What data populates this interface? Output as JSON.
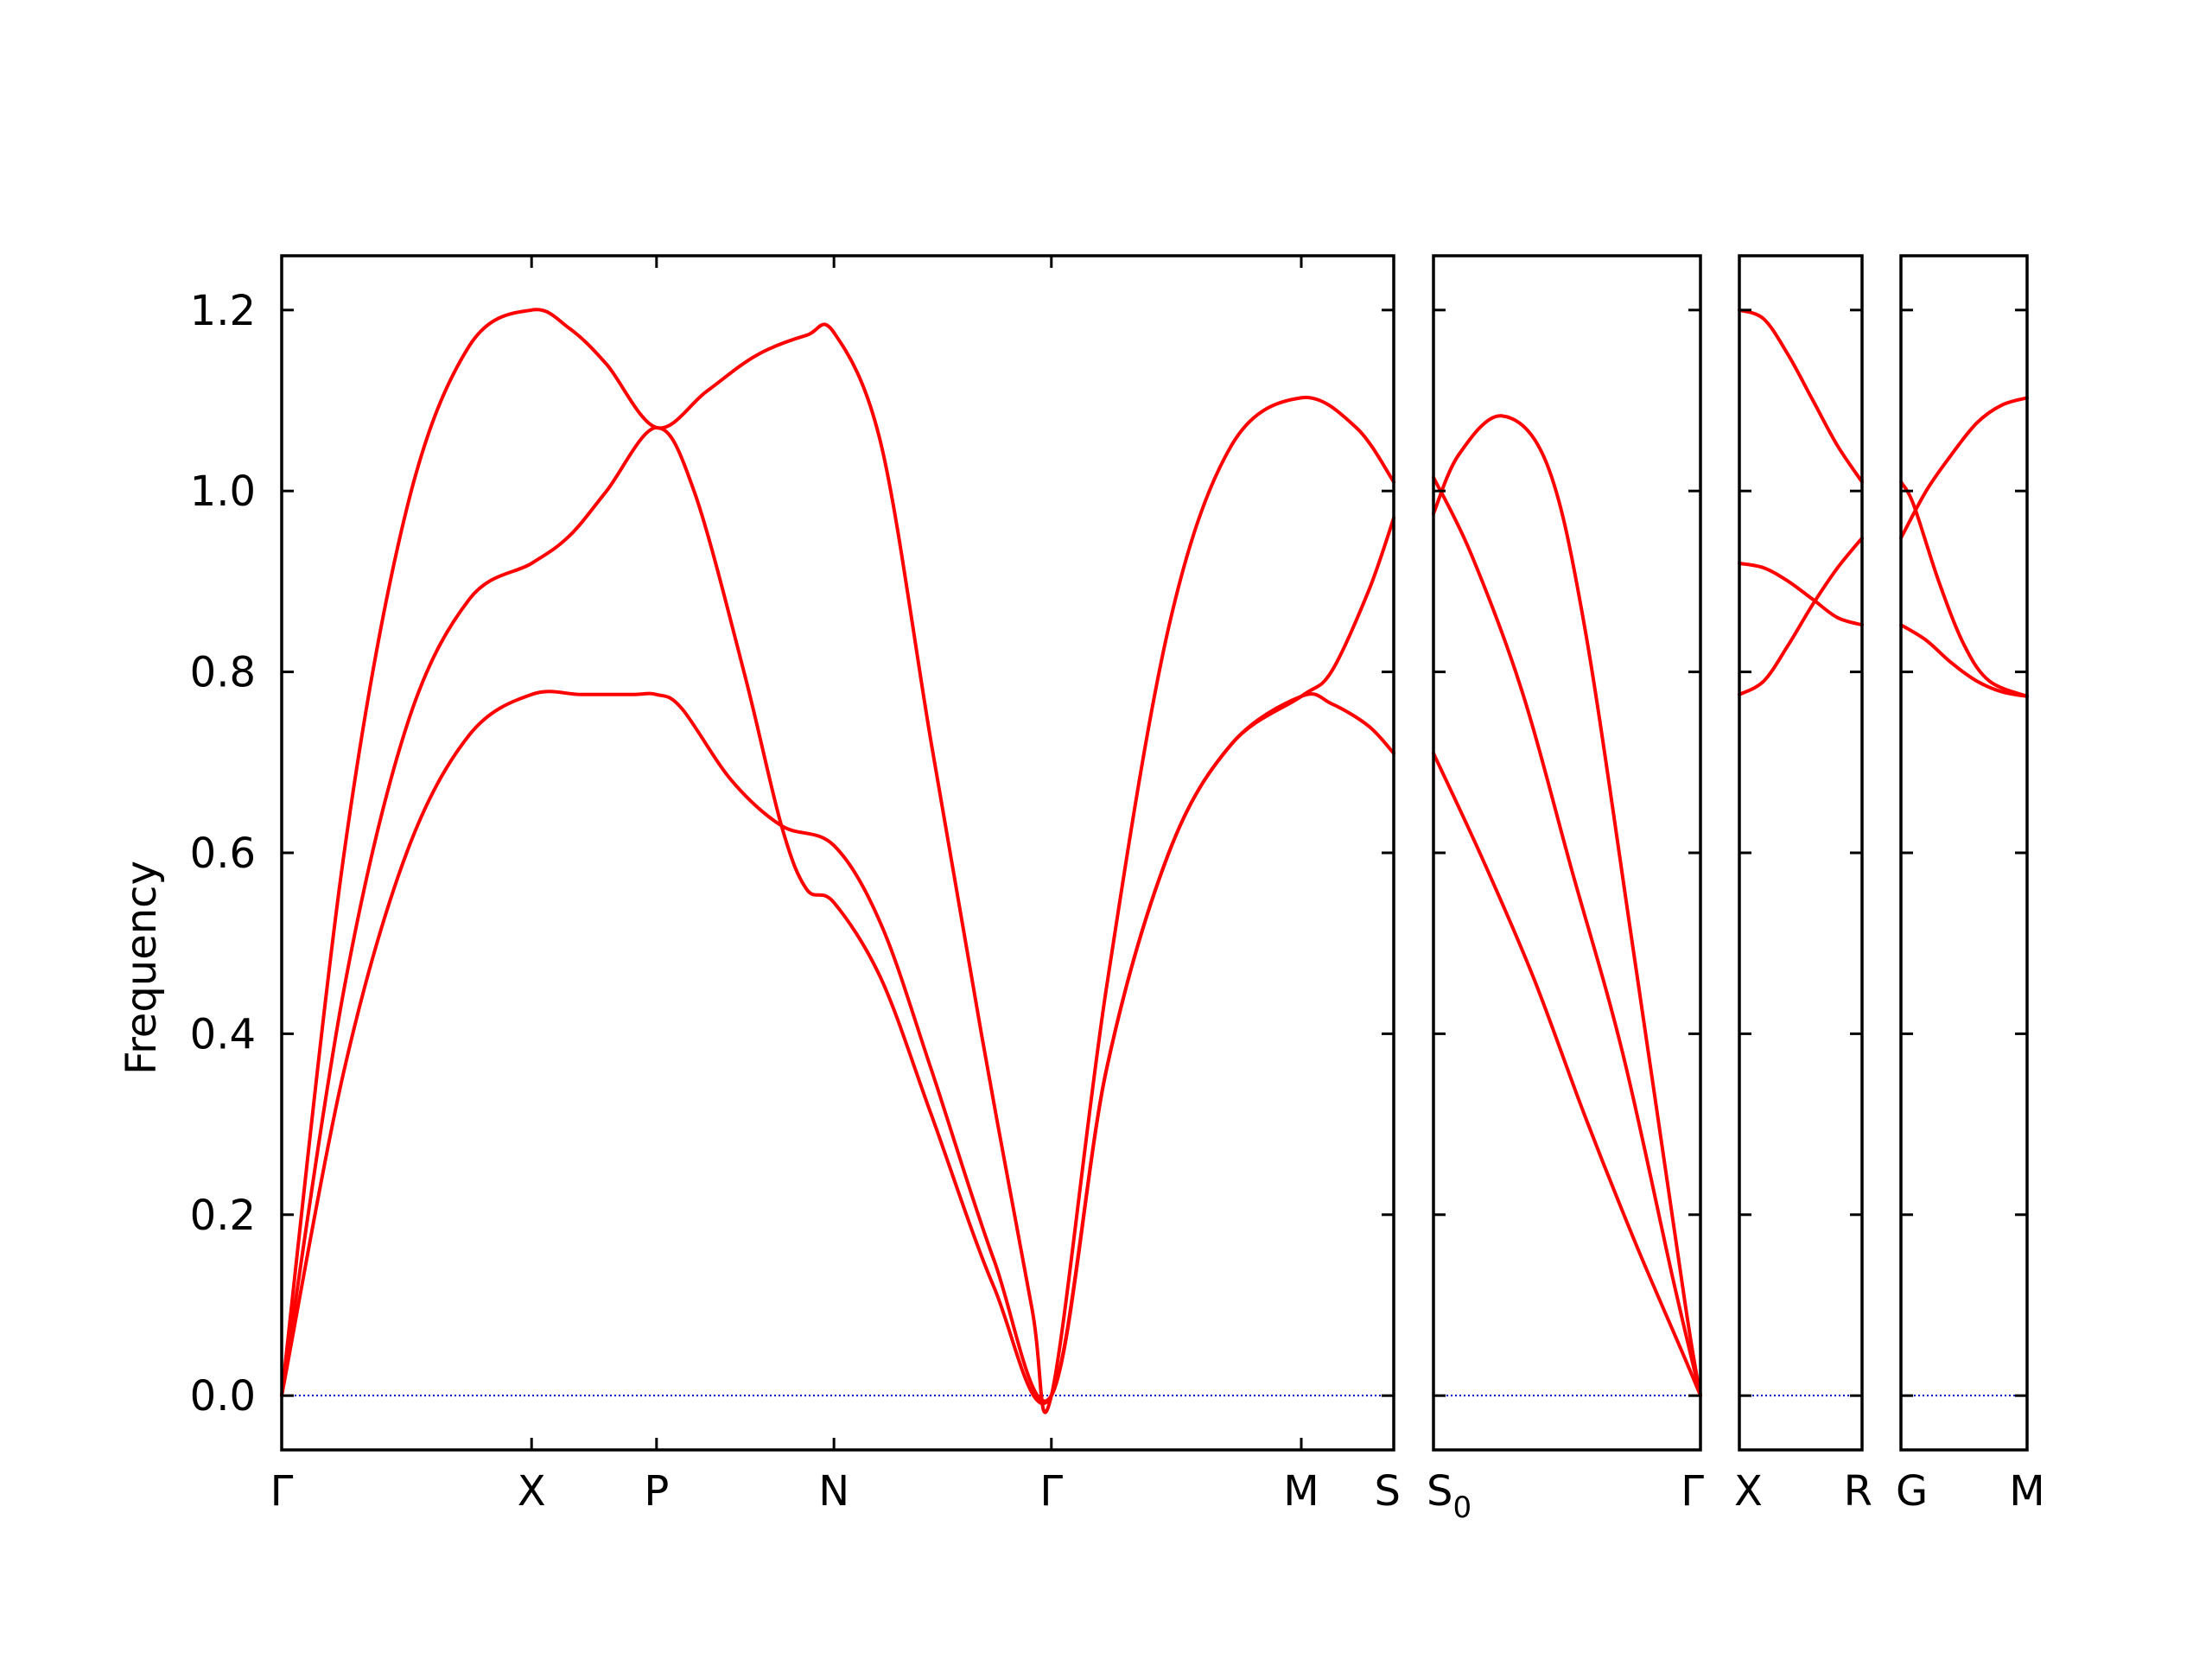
{
  "chart_data": {
    "type": "line",
    "ylabel": "Frequency",
    "ylim": [
      -0.06,
      1.26
    ],
    "yticks": [
      "0.0",
      "0.2",
      "0.4",
      "0.6",
      "0.8",
      "1.0",
      "1.2"
    ],
    "colors": {
      "bands": "#ff0000",
      "zero_line": "#0000cc",
      "frame": "#000000"
    },
    "grid": false,
    "legend": "none",
    "panels": [
      {
        "xlim": [
          0,
          4.45
        ],
        "ticks": [
          {
            "x": 0,
            "label": "Γ"
          },
          {
            "x": 1.0,
            "label": "X"
          },
          {
            "x": 1.5,
            "label": "P"
          },
          {
            "x": 2.21,
            "label": "N"
          },
          {
            "x": 3.08,
            "label": "Γ"
          },
          {
            "x": 4.08,
            "label": "M"
          },
          {
            "x": 4.45,
            "label": "S"
          }
        ],
        "series": [
          {
            "values": [
              [
                0,
                0
              ],
              [
                0.25,
                0.6
              ],
              [
                0.5,
                0.98
              ],
              [
                0.75,
                1.16
              ],
              [
                1.0,
                1.2
              ],
              [
                1.15,
                1.18
              ],
              [
                1.3,
                1.14
              ],
              [
                1.5,
                1.07
              ],
              [
                1.7,
                1.11
              ],
              [
                1.9,
                1.15
              ],
              [
                2.1,
                1.172
              ],
              [
                2.21,
                1.175
              ],
              [
                2.4,
                1.05
              ],
              [
                2.6,
                0.72
              ],
              [
                2.8,
                0.4
              ],
              [
                3.0,
                0.1
              ],
              [
                3.08,
                0
              ],
              [
                3.3,
                0.45
              ],
              [
                3.55,
                0.85
              ],
              [
                3.8,
                1.05
              ],
              [
                4.08,
                1.103
              ],
              [
                4.3,
                1.07
              ],
              [
                4.45,
                1.01
              ]
            ]
          },
          {
            "values": [
              [
                0,
                0
              ],
              [
                0.25,
                0.45
              ],
              [
                0.5,
                0.74
              ],
              [
                0.75,
                0.88
              ],
              [
                1.0,
                0.92
              ],
              [
                1.15,
                0.95
              ],
              [
                1.3,
                1.0
              ],
              [
                1.5,
                1.07
              ],
              [
                1.65,
                1.0
              ],
              [
                1.85,
                0.8
              ],
              [
                2.0,
                0.63
              ],
              [
                2.1,
                0.56
              ],
              [
                2.21,
                0.545
              ],
              [
                2.4,
                0.46
              ],
              [
                2.6,
                0.31
              ],
              [
                2.85,
                0.12
              ],
              [
                3.08,
                0
              ],
              [
                3.3,
                0.36
              ],
              [
                3.55,
                0.6
              ],
              [
                3.8,
                0.72
              ],
              [
                4.08,
                0.773
              ],
              [
                4.2,
                0.8
              ],
              [
                4.35,
                0.89
              ],
              [
                4.45,
                0.97
              ]
            ]
          },
          {
            "values": [
              [
                0,
                0
              ],
              [
                0.25,
                0.36
              ],
              [
                0.5,
                0.6
              ],
              [
                0.75,
                0.73
              ],
              [
                1.0,
                0.775
              ],
              [
                1.2,
                0.775
              ],
              [
                1.4,
                0.775
              ],
              [
                1.5,
                0.775
              ],
              [
                1.6,
                0.76
              ],
              [
                1.8,
                0.68
              ],
              [
                2.0,
                0.63
              ],
              [
                2.21,
                0.608
              ],
              [
                2.4,
                0.52
              ],
              [
                2.6,
                0.36
              ],
              [
                2.85,
                0.15
              ],
              [
                3.08,
                0
              ],
              [
                3.3,
                0.36
              ],
              [
                3.55,
                0.6
              ],
              [
                3.8,
                0.72
              ],
              [
                4.08,
                0.773
              ],
              [
                4.2,
                0.765
              ],
              [
                4.35,
                0.74
              ],
              [
                4.45,
                0.71
              ]
            ]
          }
        ]
      },
      {
        "xlim": [
          0,
          1.06
        ],
        "ticks": [
          {
            "x": 0,
            "label": "S",
            "sub": "0"
          },
          {
            "x": 1.06,
            "label": "Γ"
          }
        ],
        "series": [
          {
            "values": [
              [
                0,
                0.975
              ],
              [
                0.1,
                1.04
              ],
              [
                0.27,
                1.083
              ],
              [
                0.45,
                1.03
              ],
              [
                0.6,
                0.85
              ],
              [
                0.8,
                0.48
              ],
              [
                1.0,
                0.1
              ],
              [
                1.06,
                0
              ]
            ]
          },
          {
            "values": [
              [
                0,
                1.015
              ],
              [
                0.15,
                0.93
              ],
              [
                0.35,
                0.78
              ],
              [
                0.55,
                0.58
              ],
              [
                0.75,
                0.38
              ],
              [
                0.95,
                0.13
              ],
              [
                1.06,
                0
              ]
            ]
          },
          {
            "values": [
              [
                0,
                0.71
              ],
              [
                0.2,
                0.59
              ],
              [
                0.4,
                0.46
              ],
              [
                0.6,
                0.31
              ],
              [
                0.8,
                0.17
              ],
              [
                1.0,
                0.04
              ],
              [
                1.06,
                0
              ]
            ]
          }
        ]
      },
      {
        "xlim": [
          0,
          0.5
        ],
        "ticks": [
          {
            "x": 0,
            "label": "X"
          },
          {
            "x": 0.5,
            "label": "R"
          }
        ],
        "series": [
          {
            "values": [
              [
                0,
                1.2
              ],
              [
                0.1,
                1.19
              ],
              [
                0.2,
                1.15
              ],
              [
                0.3,
                1.1
              ],
              [
                0.4,
                1.05
              ],
              [
                0.5,
                1.01
              ]
            ]
          },
          {
            "values": [
              [
                0,
                0.92
              ],
              [
                0.1,
                0.915
              ],
              [
                0.2,
                0.9
              ],
              [
                0.3,
                0.88
              ],
              [
                0.4,
                0.86
              ],
              [
                0.5,
                0.852
              ]
            ]
          },
          {
            "values": [
              [
                0,
                0.775
              ],
              [
                0.1,
                0.79
              ],
              [
                0.2,
                0.83
              ],
              [
                0.3,
                0.875
              ],
              [
                0.4,
                0.915
              ],
              [
                0.5,
                0.948
              ]
            ]
          }
        ]
      },
      {
        "xlim": [
          0,
          0.5
        ],
        "ticks": [
          {
            "x": 0,
            "label": "G"
          },
          {
            "x": 0.5,
            "label": "M"
          }
        ],
        "series": [
          {
            "values": [
              [
                0,
                0.948
              ],
              [
                0.1,
                1.0
              ],
              [
                0.2,
                1.04
              ],
              [
                0.3,
                1.075
              ],
              [
                0.4,
                1.095
              ],
              [
                0.5,
                1.103
              ]
            ]
          },
          {
            "values": [
              [
                0,
                1.01
              ],
              [
                0.05,
                0.985
              ],
              [
                0.15,
                0.9
              ],
              [
                0.25,
                0.83
              ],
              [
                0.35,
                0.79
              ],
              [
                0.5,
                0.773
              ]
            ]
          },
          {
            "values": [
              [
                0,
                0.852
              ],
              [
                0.1,
                0.835
              ],
              [
                0.2,
                0.81
              ],
              [
                0.3,
                0.79
              ],
              [
                0.4,
                0.778
              ],
              [
                0.5,
                0.773
              ]
            ]
          }
        ]
      }
    ]
  }
}
